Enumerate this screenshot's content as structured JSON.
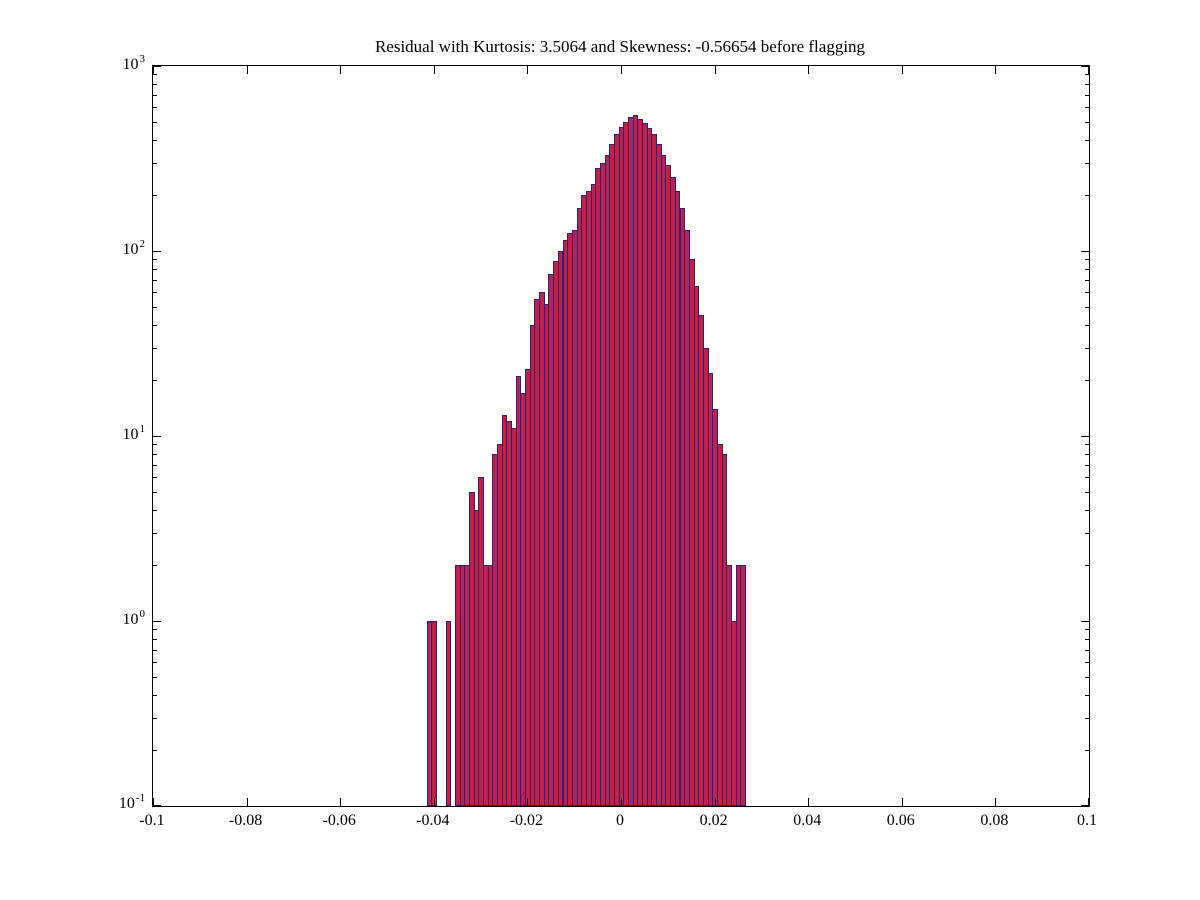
{
  "title": "Residual with Kurtosis: 3.5064 and Skewness: -0.56654 before flagging",
  "chart_data": {
    "type": "bar",
    "title": "Residual with Kurtosis: 3.5064 and Skewness: -0.56654 before flagging",
    "xlabel": "",
    "ylabel": "",
    "yscale": "log",
    "xlim": [
      -0.1,
      0.1
    ],
    "ylim_log10": [
      -1,
      3
    ],
    "bin_width": 0.001,
    "bar_fill": "#c42045",
    "bar_edge": "#23237d",
    "axis_color": "#000000",
    "x_tick_values": [
      -0.1,
      -0.08,
      -0.06,
      -0.04,
      -0.02,
      0,
      0.02,
      0.04,
      0.06,
      0.08,
      0.1
    ],
    "x_tick_labels": [
      "-0.1",
      "-0.08",
      "-0.06",
      "-0.04",
      "-0.02",
      "0",
      "0.02",
      "0.04",
      "0.06",
      "0.08",
      "0.1"
    ],
    "y_tick_exponents": [
      -1,
      0,
      1,
      2,
      3
    ],
    "grid": false,
    "legend": false,
    "x": [
      -0.041,
      -0.04,
      -0.039,
      -0.038,
      -0.037,
      -0.036,
      -0.035,
      -0.034,
      -0.033,
      -0.032,
      -0.031,
      -0.03,
      -0.029,
      -0.028,
      -0.027,
      -0.026,
      -0.025,
      -0.024,
      -0.023,
      -0.022,
      -0.021,
      -0.02,
      -0.019,
      -0.018,
      -0.017,
      -0.016,
      -0.015,
      -0.014,
      -0.013,
      -0.012,
      -0.011,
      -0.01,
      -0.009,
      -0.008,
      -0.007,
      -0.006,
      -0.005,
      -0.004,
      -0.003,
      -0.002,
      -0.001,
      0.0,
      0.001,
      0.002,
      0.003,
      0.004,
      0.005,
      0.006,
      0.007,
      0.008,
      0.009,
      0.01,
      0.011,
      0.012,
      0.013,
      0.014,
      0.015,
      0.016,
      0.017,
      0.018,
      0.019,
      0.02,
      0.021,
      0.022,
      0.023,
      0.024,
      0.025,
      0.026
    ],
    "values": [
      1,
      1,
      0,
      0,
      1,
      0,
      2,
      2,
      2,
      5,
      4,
      6,
      2,
      2,
      8,
      9,
      13,
      12,
      11,
      21,
      17,
      23,
      40,
      55,
      60,
      52,
      75,
      88,
      100,
      115,
      125,
      130,
      170,
      200,
      210,
      230,
      280,
      300,
      330,
      380,
      430,
      470,
      500,
      530,
      545,
      520,
      490,
      460,
      430,
      380,
      330,
      290,
      250,
      210,
      170,
      130,
      90,
      65,
      45,
      30,
      22,
      14,
      9,
      8,
      2,
      1,
      2,
      2
    ]
  }
}
